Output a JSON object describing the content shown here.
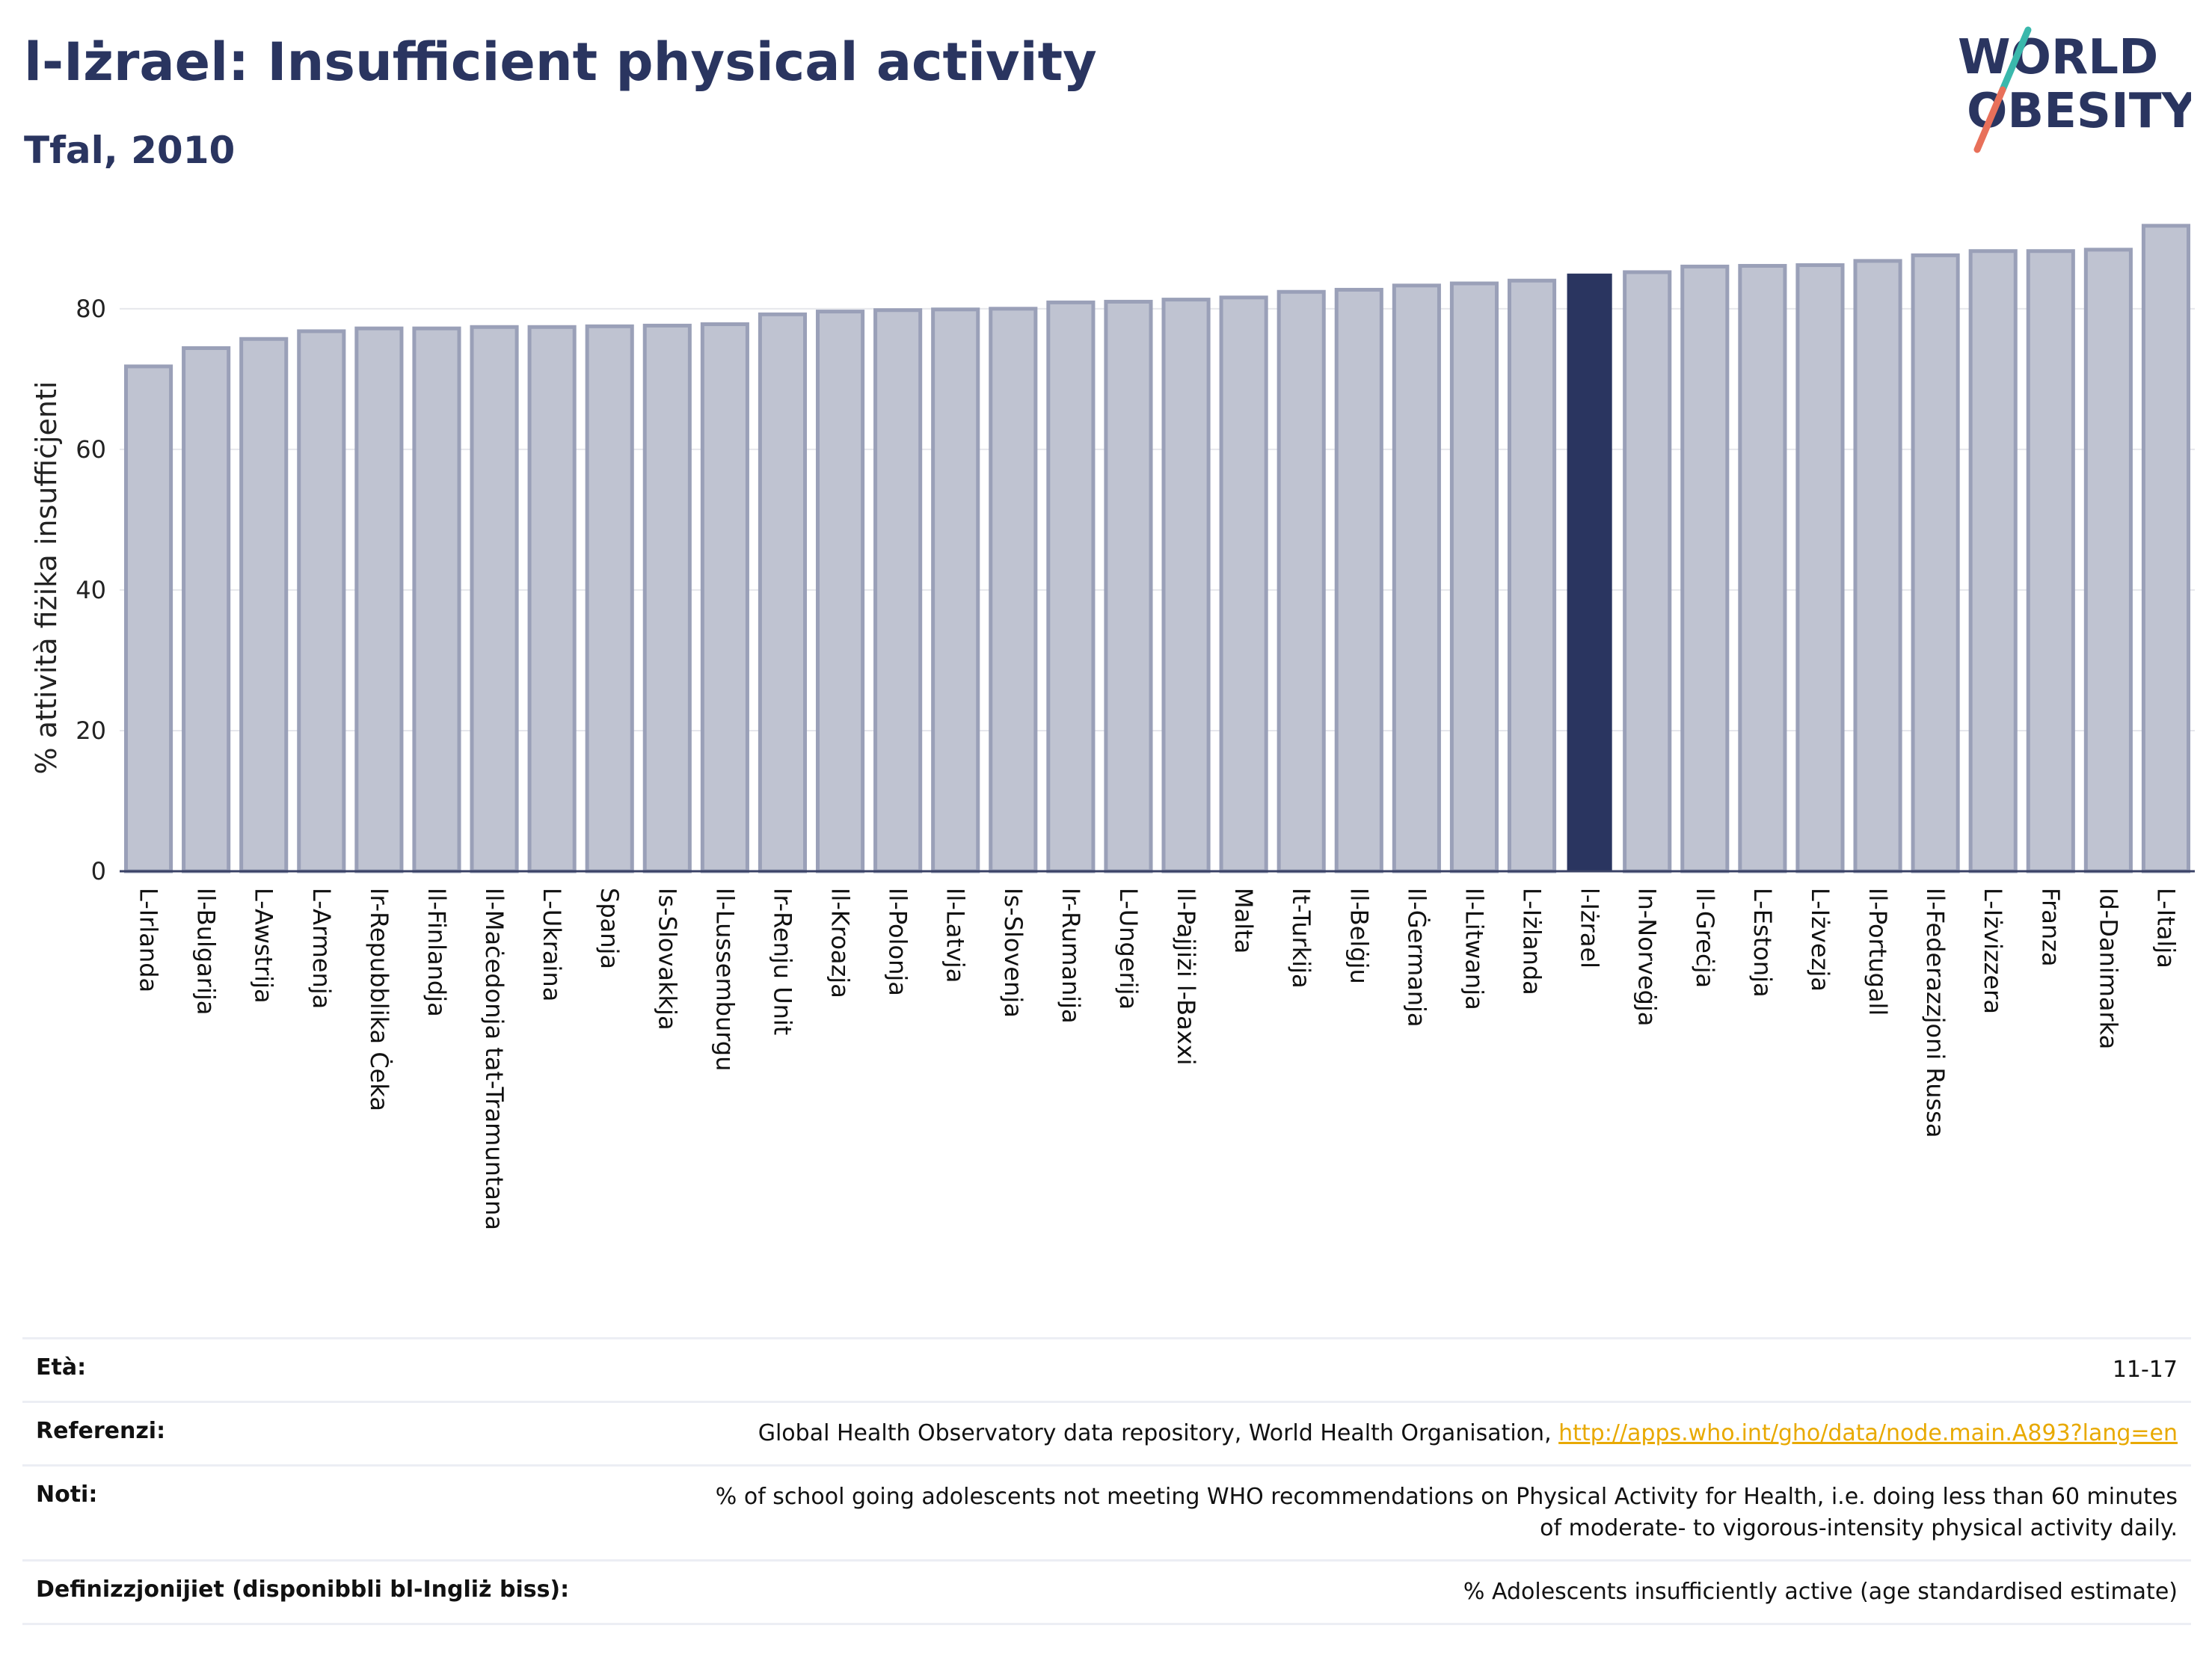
{
  "header": {
    "title": "l-Iżrael: Insufficient physical activity",
    "subtitle": "Tfal, 2010",
    "logo_line1": "WORLD",
    "logo_line2": "OBESITY"
  },
  "colors": {
    "bar": "#bfc3d1",
    "bar_border": "#9aa0b8",
    "highlight": "#2a3560",
    "title": "#2a3560",
    "link": "#e8a900",
    "logo_slash_top": "#3ab8ac",
    "logo_slash_bottom": "#e8705a"
  },
  "chart_data": {
    "type": "bar",
    "title": "",
    "ylabel": "% attività fiżika insuffiċjenti",
    "xlabel": "",
    "ylim": [
      0,
      92
    ],
    "yticks": [
      0,
      20,
      40,
      60,
      80
    ],
    "grid": true,
    "highlight": "l-Iżrael",
    "categories": [
      "L-Irlanda",
      "Il-Bulgarija",
      "L-Awstrija",
      "L-Armenja",
      "Ir-Repubblika Ċeka",
      "Il-Finlandja",
      "Il-Maċedonja tat-Tramuntana",
      "L-Ukraina",
      "Spanja",
      "Is-Slovakkja",
      "Il-Lussemburgu",
      "Ir-Renju Unit",
      "Il-Kroazja",
      "Il-Polonja",
      "Il-Latvja",
      "Is-Slovenja",
      "Ir-Rumanija",
      "L-Ungerija",
      "Il-Pajjiżi l-Baxxi",
      "Malta",
      "It-Turkija",
      "Il-Belġju",
      "Il-Ġermanja",
      "Il-Litwanja",
      "L-Iżlanda",
      "l-Iżrael",
      "In-Norveġja",
      "Il-Greċja",
      "L-Estonja",
      "L-Iżvezja",
      "Il-Portugall",
      "Il-Federazzjoni Russa",
      "L-Iżvizzera",
      "Franza",
      "Id-Danimarka",
      "L-Italja"
    ],
    "values": [
      71.8,
      74.4,
      75.7,
      76.8,
      77.2,
      77.2,
      77.4,
      77.4,
      77.5,
      77.6,
      77.8,
      79.2,
      79.6,
      79.8,
      79.9,
      80.0,
      80.9,
      81.0,
      81.3,
      81.6,
      82.4,
      82.7,
      83.3,
      83.6,
      84.0,
      85.0,
      85.2,
      86.0,
      86.1,
      86.2,
      86.8,
      87.6,
      88.2,
      88.2,
      88.4,
      91.8
    ]
  },
  "info": {
    "age_label": "Età:",
    "age_value": "11-17",
    "refs_label": "Referenzi:",
    "refs_text": "Global Health Observatory data repository, World Health Organisation, ",
    "refs_link": "http://apps.who.int/gho/data/node.main.A893?lang=en",
    "notes_label": "Noti:",
    "notes_text": "% of school going adolescents not meeting WHO recommendations on Physical Activity for Health, i.e. doing less than 60 minutes of moderate- to vigorous-intensity physical activity daily.",
    "defs_label": "Definizzjonijiet (disponibbli bl-Ingliż biss):",
    "defs_text": "% Adolescents insufficiently active (age standardised estimate)"
  }
}
